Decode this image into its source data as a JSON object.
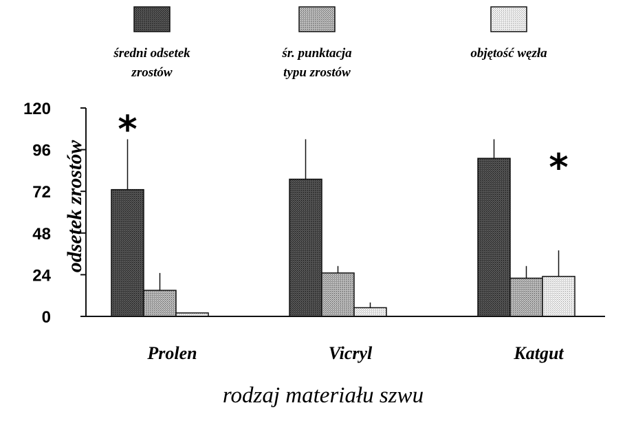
{
  "chart_data": {
    "type": "bar",
    "categories": [
      "Prolen",
      "Vicryl",
      "Katgut"
    ],
    "series": [
      {
        "name": "średni odsetek zrostów",
        "name_lines": [
          "średni odsetek",
          "zrostów"
        ],
        "values": [
          73,
          79,
          91
        ],
        "errors": [
          29,
          23,
          11
        ],
        "color": "#3a3a3a"
      },
      {
        "name": "śr. punktacja typu zrostów",
        "name_lines": [
          "śr. punktacja",
          "typu zrostów"
        ],
        "values": [
          15,
          25,
          22
        ],
        "errors": [
          10,
          4,
          7
        ],
        "color": "#9a9a9a"
      },
      {
        "name": "objętość węzła",
        "name_lines": [
          "objętość węzła"
        ],
        "values": [
          2,
          5,
          23
        ],
        "errors": [
          0,
          3,
          15
        ],
        "color": "#dedede"
      }
    ],
    "yticks": [
      0,
      24,
      48,
      72,
      96,
      120
    ],
    "ylim": [
      0,
      120
    ],
    "xlabel": "rodzaj materiału szwu",
    "ylabel": "odsetek zrostów",
    "annotations": [
      {
        "text": "*",
        "category": "Prolen",
        "series": 0,
        "y": 113
      },
      {
        "text": "*",
        "category": "Katgut",
        "series": 2,
        "y": 91
      }
    ],
    "grid": false,
    "legend_position": "top"
  }
}
